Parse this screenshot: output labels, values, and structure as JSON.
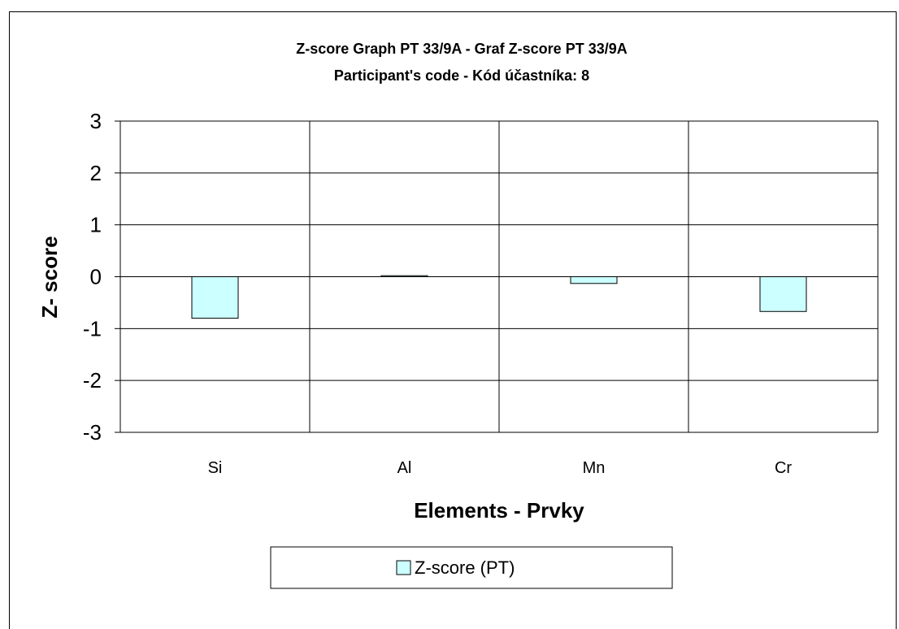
{
  "chart_data": {
    "type": "bar",
    "title": "Z-score Graph PT 33/9A - Graf Z-score PT 33/9A",
    "subtitle": "Participant's code - Kód účastníka:  8",
    "xlabel": "Elements - Prvky",
    "ylabel": "Z- score",
    "categories": [
      "Si",
      "Al",
      "Mn",
      "Cr"
    ],
    "series": [
      {
        "name": "Z-score (PT)",
        "values": [
          -0.8,
          0.02,
          -0.13,
          -0.67
        ],
        "color": "#ccffff"
      }
    ],
    "ylim": [
      -3,
      3
    ],
    "yticks": [
      3,
      2,
      1,
      0,
      -1,
      -2,
      -3
    ],
    "ytick_labels": [
      "3",
      "2",
      "1",
      "0",
      "-1",
      "-2",
      "-3"
    ],
    "grid": true,
    "legend_position": "bottom"
  }
}
